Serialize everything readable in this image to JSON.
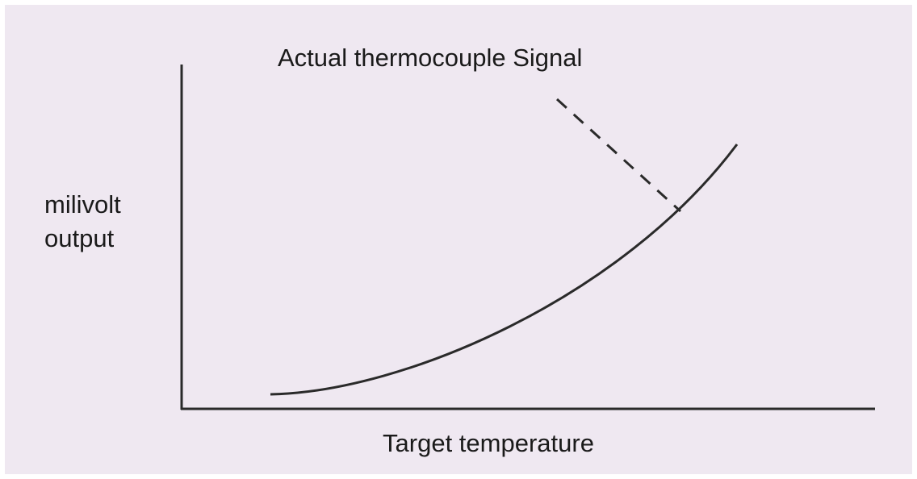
{
  "annotation": "Actual thermocouple Signal",
  "y_label": [
    "milivolt",
    "output"
  ],
  "x_label": "Target temperature"
}
